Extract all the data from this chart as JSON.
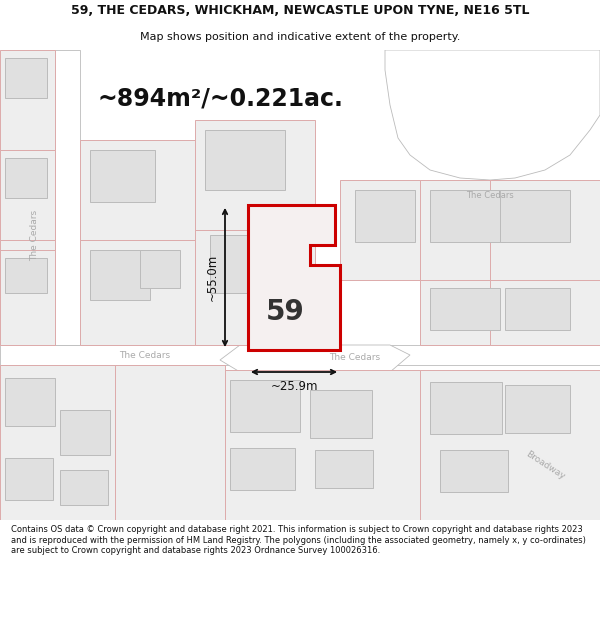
{
  "title_line1": "59, THE CEDARS, WHICKHAM, NEWCASTLE UPON TYNE, NE16 5TL",
  "title_line2": "Map shows position and indicative extent of the property.",
  "area_label": "~894m²/~0.221ac.",
  "property_number": "59",
  "dim_vertical": "~55.0m",
  "dim_horizontal": "~25.9m",
  "footer_text": "Contains OS data © Crown copyright and database right 2021. This information is subject to Crown copyright and database rights 2023 and is reproduced with the permission of HM Land Registry. The polygons (including the associated geometry, namely x, y co-ordinates) are subject to Crown copyright and database rights 2023 Ordnance Survey 100026316.",
  "bg_color": "#ffffff",
  "map_bg": "#f2f2f2",
  "road_fill": "#ffffff",
  "road_stroke": "#bbbbbb",
  "building_fill": "#e0e0e0",
  "building_stroke": "#bbbbbb",
  "lot_fill": "#eeeeee",
  "lot_stroke": "#ddaaaa",
  "property_stroke": "#cc0000",
  "property_fill": "#f5f0f0",
  "road_label_color": "#aaaaaa",
  "dim_color": "#111111",
  "title_fontsize": 9.0,
  "subtitle_fontsize": 8.0,
  "area_fontsize": 17,
  "property_num_fontsize": 20,
  "dim_fontsize": 8.5,
  "road_label_fontsize": 6.5,
  "footer_fontsize": 6.0
}
